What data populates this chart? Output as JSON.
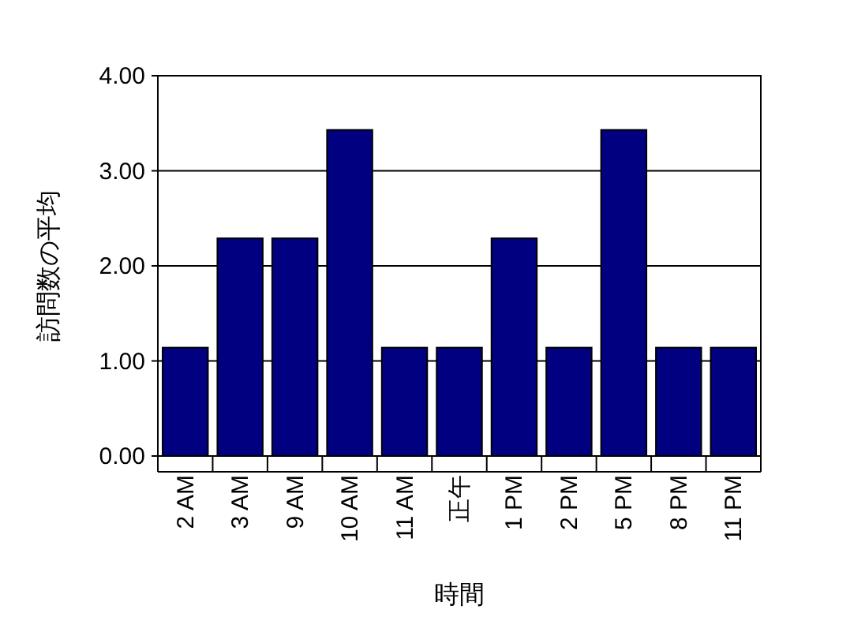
{
  "chart_data": {
    "type": "bar",
    "xlabel": "時間",
    "ylabel": "訪問数の平均",
    "categories": [
      "2 AM",
      "3 AM",
      "9 AM",
      "10 AM",
      "11 AM",
      "正午",
      "1 PM",
      "2 PM",
      "5 PM",
      "8 PM",
      "11 PM"
    ],
    "values": [
      1.14,
      2.29,
      2.29,
      3.43,
      1.14,
      1.14,
      2.29,
      1.14,
      3.43,
      1.14,
      1.14
    ],
    "color": "#000080",
    "ylim": [
      0,
      4
    ],
    "yticks": [
      {
        "value": 0,
        "label": "0.00"
      },
      {
        "value": 1,
        "label": "1.00"
      },
      {
        "value": 2,
        "label": "2.00"
      },
      {
        "value": 3,
        "label": "3.00"
      },
      {
        "value": 4,
        "label": "4.00"
      }
    ],
    "grid": "y"
  }
}
